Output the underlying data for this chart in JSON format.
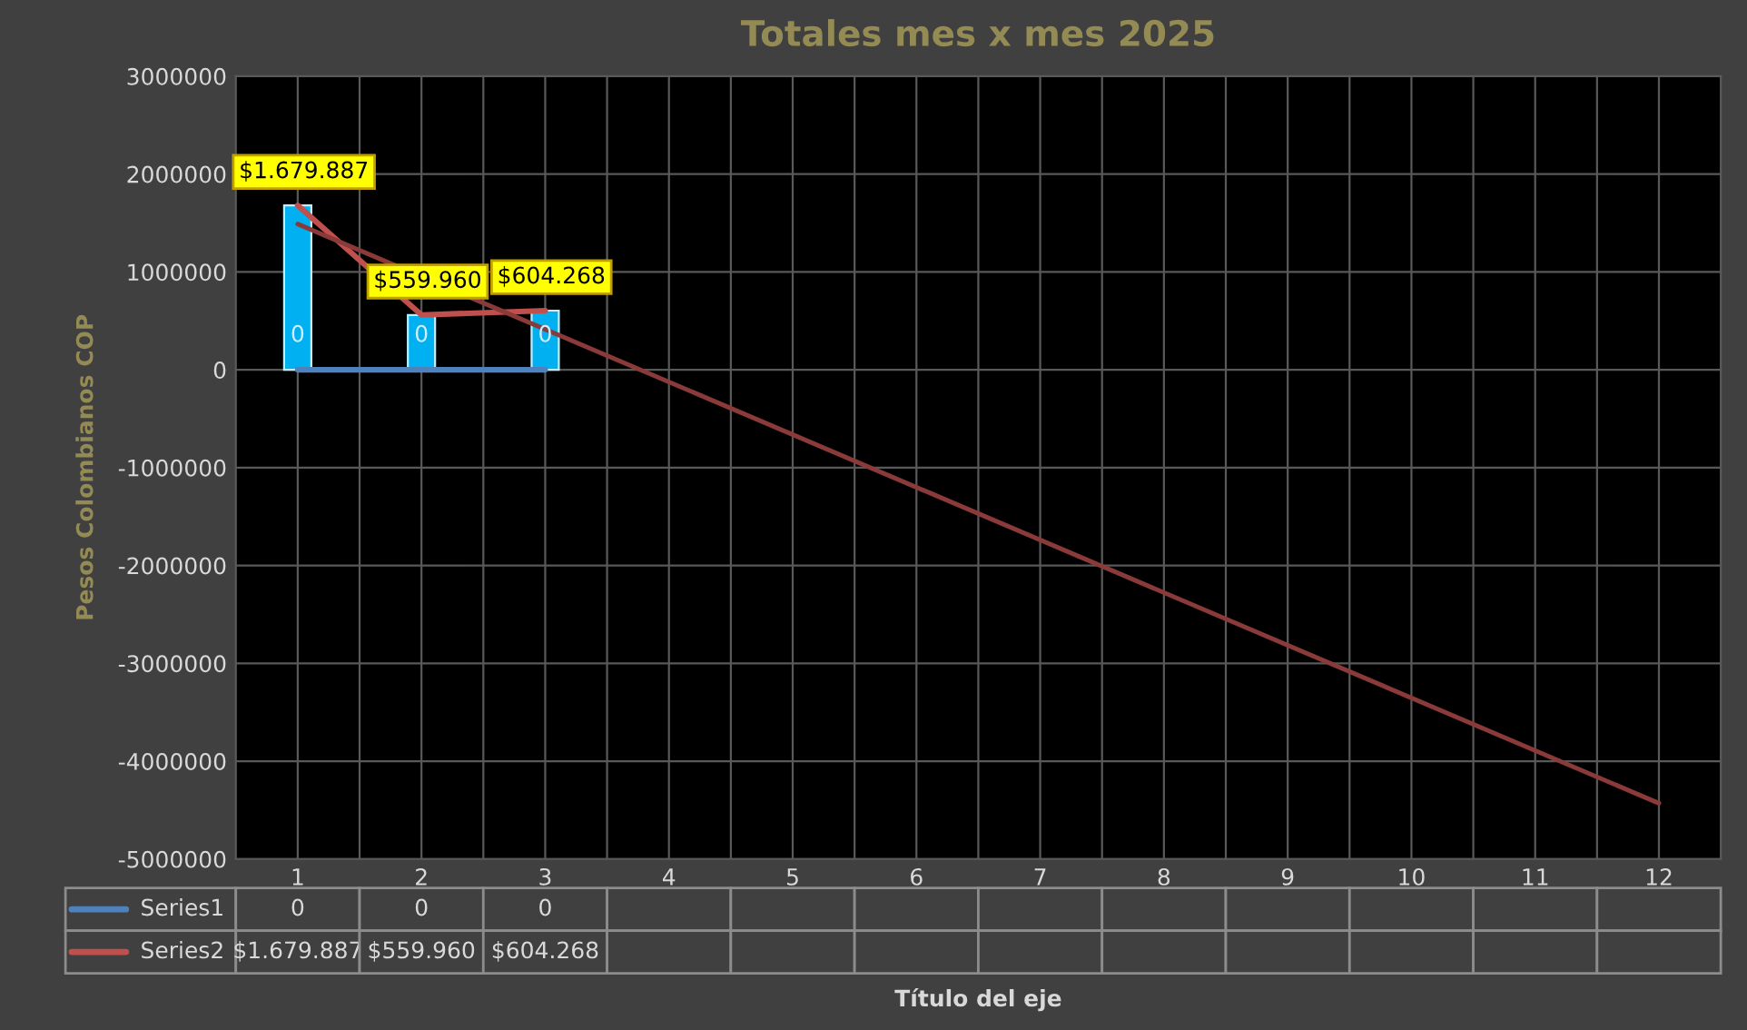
{
  "chart_data": {
    "type": "line",
    "title": "Totales mes x mes 2025",
    "xlabel": "Título del eje",
    "ylabel": "Pesos Colombianos COP",
    "categories": [
      "1",
      "2",
      "3",
      "4",
      "5",
      "6",
      "7",
      "8",
      "9",
      "10",
      "11",
      "12"
    ],
    "series": [
      {
        "name": "Series1",
        "color": "#4f81bd",
        "values": [
          0,
          0,
          0,
          null,
          null,
          null,
          null,
          null,
          null,
          null,
          null,
          null
        ],
        "value_labels": [
          "0",
          "0",
          "0",
          null,
          null,
          null,
          null,
          null,
          null,
          null,
          null,
          null
        ]
      },
      {
        "name": "Series2",
        "color": "#c0504d",
        "values": [
          1679887,
          559960,
          604268,
          null,
          null,
          null,
          null,
          null,
          null,
          null,
          null,
          null
        ],
        "value_labels": [
          "$1.679.887",
          "$559.960",
          "$604.268",
          null,
          null,
          null,
          null,
          null,
          null,
          null,
          null,
          null
        ]
      },
      {
        "type": "bar",
        "color": "#00b0f0",
        "values": [
          1679887,
          559960,
          604268,
          null,
          null,
          null,
          null,
          null,
          null,
          null,
          null,
          null
        ]
      },
      {
        "type": "line",
        "color": "#8b3a3a",
        "x": [
          "1",
          "12"
        ],
        "values": [
          1490000,
          -4430000
        ]
      }
    ],
    "ylim": [
      -5000000,
      3000000
    ],
    "yticks": [
      -5000000,
      -4000000,
      -3000000,
      -2000000,
      -1000000,
      0,
      1000000,
      2000000,
      3000000
    ],
    "grid": true,
    "legend": "bottom"
  }
}
